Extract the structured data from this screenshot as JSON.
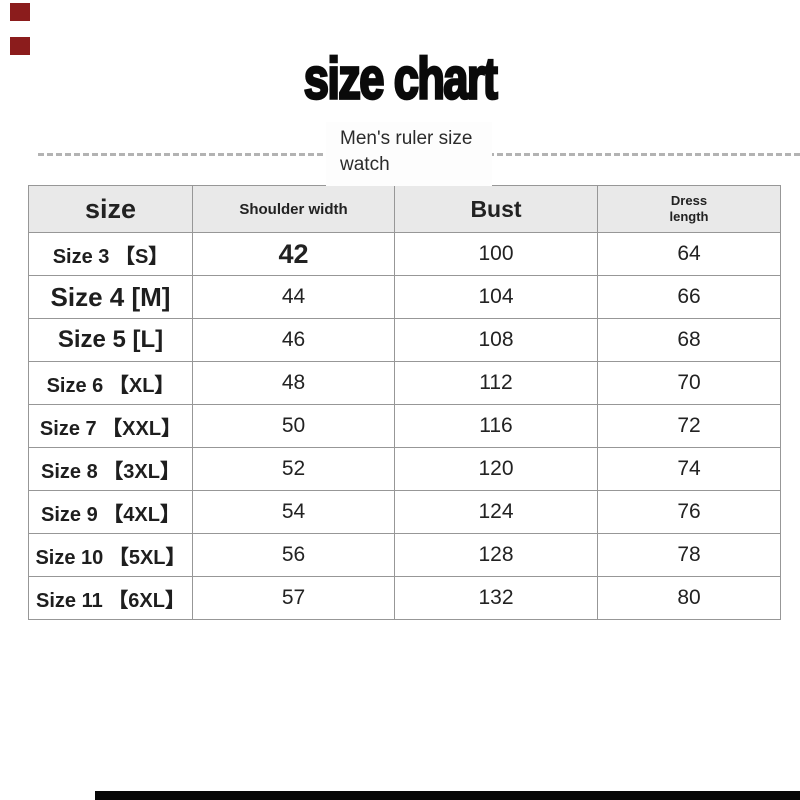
{
  "header": {
    "title": "size chart",
    "subtitle_line1": "Men's ruler size",
    "subtitle_line2": "watch"
  },
  "chart_data": {
    "type": "table",
    "title": "size chart",
    "subtitle": "Men's ruler size watch",
    "columns": [
      "size",
      "Shoulder width",
      "Bust",
      "Dress length"
    ],
    "rows": [
      [
        "Size 3 【S】",
        42,
        100,
        64
      ],
      [
        "Size 4 [M]",
        44,
        104,
        66
      ],
      [
        "Size 5 [L]",
        46,
        108,
        68
      ],
      [
        "Size 6 【XL】",
        48,
        112,
        70
      ],
      [
        "Size 7 【XXL】",
        50,
        116,
        72
      ],
      [
        "Size 8 【3XL】",
        52,
        120,
        74
      ],
      [
        "Size 9 【4XL】",
        54,
        124,
        76
      ],
      [
        "Size 10 【5XL】",
        56,
        128,
        78
      ],
      [
        "Size 11 【6XL】",
        57,
        132,
        80
      ]
    ],
    "layout_hints": {
      "header_background": "#e9e9e9",
      "border_color": "#979797",
      "divider_style": "dashed"
    }
  },
  "decor": {
    "marker_color": "#8b1c1c",
    "bottom_bar_color": "#070707"
  }
}
